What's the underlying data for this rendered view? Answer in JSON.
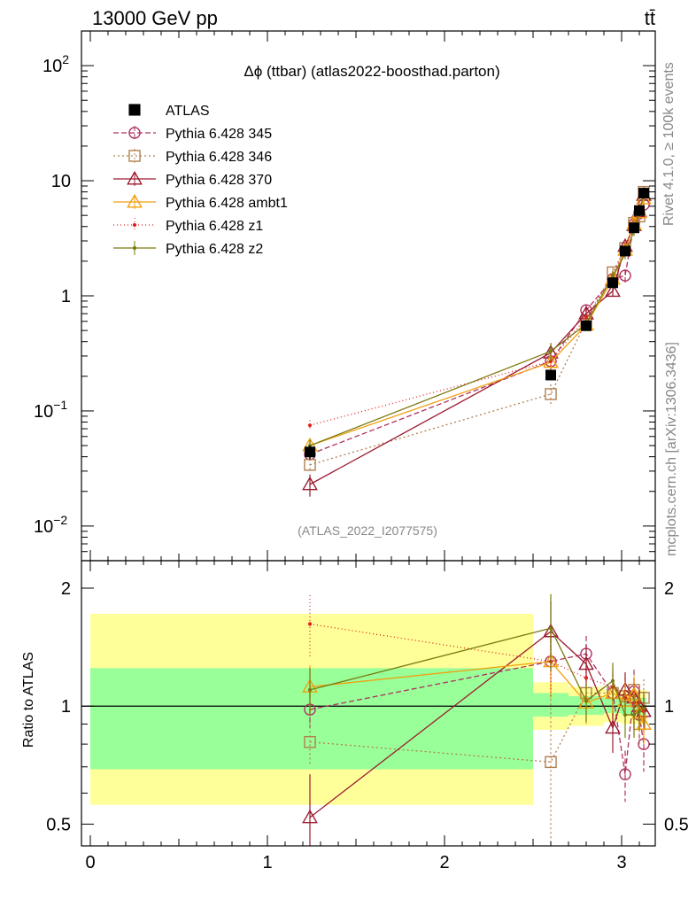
{
  "header": {
    "left": "13000 GeV pp",
    "right": "tt̄"
  },
  "side": {
    "rivet": "Rivet 4.1.0, ≥ 100k events",
    "mcplots": "mcplots.cern.ch [arXiv:1306.3436]"
  },
  "watermark": "(ATLAS_2022_I2077575)",
  "chart_data": [
    {
      "type": "line",
      "title": "Δϕ (ttbar) (atlas2022-boosthad.parton)",
      "yscale": "log",
      "xlim": [
        -0.05,
        3.19
      ],
      "ylim": [
        0.005,
        200
      ],
      "xticks": [
        {
          "v": 0,
          "label": "0"
        },
        {
          "v": 1,
          "label": "1"
        },
        {
          "v": 2,
          "label": "2"
        },
        {
          "v": 3,
          "label": "3"
        }
      ],
      "yticks": [
        {
          "v": 0.01,
          "base": "10",
          "exp": "−2"
        },
        {
          "v": 0.1,
          "base": "10",
          "exp": "−1"
        },
        {
          "v": 1,
          "base": "1",
          "exp": ""
        },
        {
          "v": 10,
          "base": "10",
          "exp": ""
        },
        {
          "v": 100,
          "base": "10",
          "exp": "2"
        }
      ],
      "x": [
        1.24,
        2.6,
        2.8,
        2.95,
        3.02,
        3.07,
        3.1,
        3.125
      ],
      "data": {
        "name": "ATLAS",
        "values": [
          0.044,
          0.205,
          0.55,
          1.3,
          2.45,
          3.9,
          5.5,
          7.8
        ],
        "errors": [
          0.006,
          0.02,
          0.04,
          0.08,
          0.15,
          0.25,
          0.35,
          0.45
        ]
      },
      "series": [
        {
          "name": "Pythia 6.428 345",
          "color": "#b03060",
          "dash": "6,3",
          "marker": "circle",
          "values": [
            0.042,
            0.27,
            0.75,
            1.4,
            1.5,
            4.2,
            5.2,
            6.2
          ],
          "errors": [
            0.005,
            0.05,
            0.08,
            0.15,
            0.2,
            0.5,
            0.6,
            0.7
          ]
        },
        {
          "name": "Pythia 6.428 346",
          "color": "#b08050",
          "dash": "2,3",
          "marker": "square",
          "values": [
            0.034,
            0.14,
            0.6,
            1.6,
            2.6,
            4.3,
            4.9,
            8.0
          ],
          "errors": [
            0.004,
            0.03,
            0.07,
            0.15,
            0.25,
            0.5,
            0.55,
            0.8
          ]
        },
        {
          "name": "Pythia 6.428 370",
          "color": "#9b1b30",
          "dash": "",
          "marker": "triangle",
          "values": [
            0.023,
            0.32,
            0.7,
            1.1,
            2.7,
            4.1,
            5.4,
            7.5
          ],
          "errors": [
            0.005,
            0.06,
            0.08,
            0.12,
            0.25,
            0.45,
            0.55,
            0.75
          ]
        },
        {
          "name": "Pythia 6.428 ambt1",
          "color": "#f0a010",
          "dash": "",
          "marker": "triangle",
          "values": [
            0.05,
            0.265,
            0.56,
            1.4,
            2.5,
            4.2,
            5.3,
            7.0
          ],
          "errors": [
            0.006,
            0.04,
            0.06,
            0.15,
            0.25,
            0.45,
            0.5,
            0.7
          ]
        },
        {
          "name": "Pythia 6.428 z1",
          "color": "#e02020",
          "dash": "1,3",
          "marker": "dot",
          "values": [
            0.075,
            0.27,
            0.65,
            1.5,
            2.6,
            4.0,
            5.6,
            7.6
          ],
          "errors": [
            0.008,
            0.04,
            0.07,
            0.15,
            0.25,
            0.45,
            0.55,
            0.75
          ]
        },
        {
          "name": "Pythia 6.428 z2",
          "color": "#7a7a10",
          "dash": "",
          "marker": "dot",
          "values": [
            0.05,
            0.33,
            0.57,
            1.5,
            2.3,
            3.7,
            5.3,
            7.7
          ],
          "errors": [
            0.006,
            0.06,
            0.06,
            0.15,
            0.22,
            0.4,
            0.5,
            0.75
          ]
        }
      ]
    },
    {
      "type": "line",
      "ylabel": "Ratio to ATLAS",
      "yscale": "log",
      "xlim": [
        -0.05,
        3.19
      ],
      "ylim": [
        0.44,
        2.35
      ],
      "xticks": [
        {
          "v": 0,
          "label": "0"
        },
        {
          "v": 1,
          "label": "1"
        },
        {
          "v": 2,
          "label": "2"
        },
        {
          "v": 3,
          "label": "3"
        }
      ],
      "yticks": [
        {
          "v": 0.5,
          "label": "0.5"
        },
        {
          "v": 1,
          "label": "1"
        },
        {
          "v": 2,
          "label": "2"
        }
      ],
      "bands": [
        {
          "x0": 0.0,
          "x1": 2.5,
          "outer": [
            0.56,
            1.72
          ],
          "inner": [
            0.69,
            1.25
          ]
        },
        {
          "x0": 2.5,
          "x1": 2.7,
          "outer": [
            0.87,
            1.15
          ],
          "inner": [
            0.94,
            1.08
          ]
        },
        {
          "x0": 2.7,
          "x1": 2.9,
          "outer": [
            0.89,
            1.12
          ],
          "inner": [
            0.95,
            1.06
          ]
        },
        {
          "x0": 2.9,
          "x1": 3.0,
          "outer": [
            0.91,
            1.1
          ],
          "inner": [
            0.96,
            1.05
          ]
        },
        {
          "x0": 3.0,
          "x1": 3.14,
          "outer": [
            0.9,
            1.1
          ],
          "inner": [
            0.95,
            1.05
          ]
        }
      ],
      "x": [
        1.24,
        2.6,
        2.8,
        2.95,
        3.02,
        3.07,
        3.1,
        3.125
      ],
      "series": [
        {
          "name": "Pythia 6.428 345",
          "color": "#b03060",
          "dash": "6,3",
          "marker": "circle",
          "values": [
            0.98,
            1.3,
            1.36,
            1.08,
            0.67,
            1.09,
            0.95,
            0.8
          ],
          "errors": [
            0.1,
            0.2,
            0.15,
            0.15,
            0.1,
            0.15,
            0.12,
            0.12
          ]
        },
        {
          "name": "Pythia 6.428 346",
          "color": "#b08050",
          "dash": "2,3",
          "marker": "square",
          "values": [
            0.81,
            0.72,
            1.08,
            1.08,
            1.06,
            1.1,
            0.9,
            1.05
          ],
          "errors": [
            0.1,
            0.35,
            0.12,
            0.12,
            0.12,
            0.14,
            0.12,
            0.12
          ]
        },
        {
          "name": "Pythia 6.428 370",
          "color": "#9b1b30",
          "dash": "",
          "marker": "triangle",
          "values": [
            0.52,
            1.55,
            1.28,
            0.88,
            1.1,
            1.05,
            1.0,
            0.97
          ],
          "errors": [
            0.15,
            0.3,
            0.15,
            0.12,
            0.12,
            0.12,
            0.1,
            0.1
          ]
        },
        {
          "name": "Pythia 6.428 ambt1",
          "color": "#f0a010",
          "dash": "",
          "marker": "triangle",
          "values": [
            1.12,
            1.3,
            1.02,
            1.08,
            1.03,
            1.07,
            0.96,
            0.9
          ],
          "errors": [
            0.15,
            0.25,
            0.12,
            0.12,
            0.12,
            0.12,
            0.1,
            0.1
          ]
        },
        {
          "name": "Pythia 6.428 z1",
          "color": "#e02020",
          "dash": "1,3",
          "marker": "dot",
          "values": [
            1.62,
            1.3,
            1.18,
            1.12,
            1.05,
            1.02,
            1.02,
            0.97
          ],
          "errors": [
            0.3,
            0.25,
            0.13,
            0.13,
            0.12,
            0.12,
            0.1,
            0.1
          ]
        },
        {
          "name": "Pythia 6.428 z2",
          "color": "#7a7a10",
          "dash": "",
          "marker": "dot",
          "values": [
            1.1,
            1.58,
            1.03,
            1.16,
            0.95,
            0.95,
            0.97,
            0.99
          ],
          "errors": [
            0.15,
            0.35,
            0.12,
            0.13,
            0.12,
            0.12,
            0.1,
            0.1
          ]
        }
      ]
    }
  ]
}
